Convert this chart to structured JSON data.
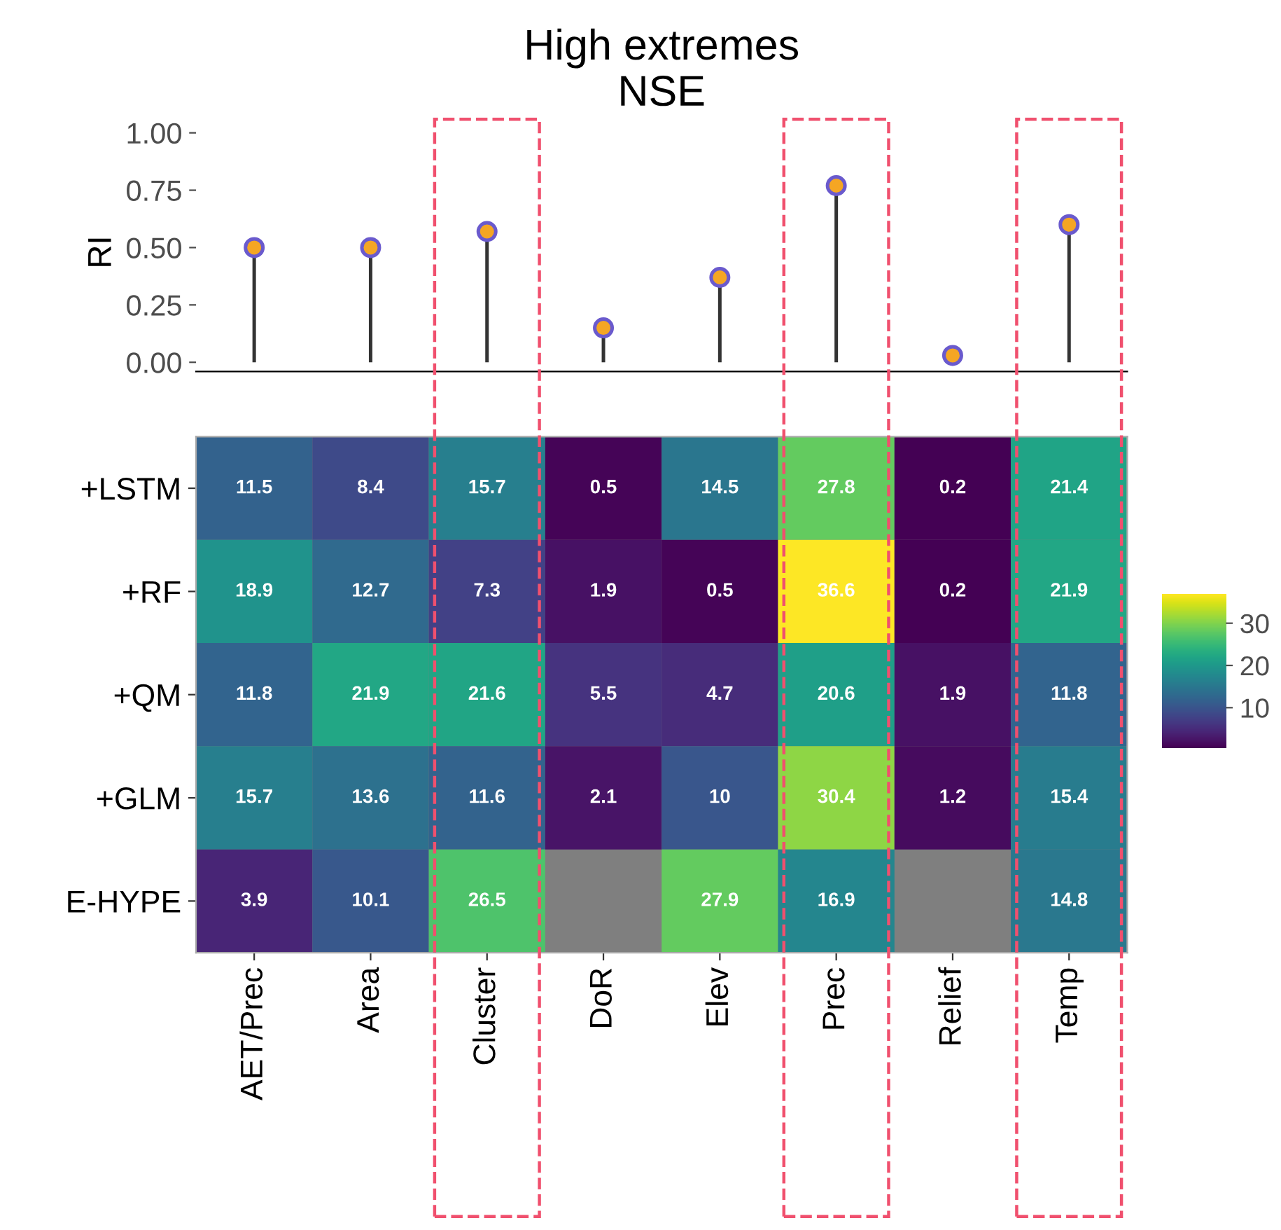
{
  "chart_data": [
    {
      "type": "lollipop",
      "title": "High extremes\nNSE",
      "ylabel": "RI",
      "categories": [
        null,
        null,
        null,
        null,
        null,
        null,
        null,
        null
      ],
      "series": [
        {
          "color": "#f5a623",
          "values": [
            0.5,
            0.5,
            0.57,
            0.15,
            0.37,
            0.77,
            0.03,
            0.6
          ]
        }
      ],
      "ylim": [
        -0.04,
        1.0
      ],
      "yticks": [
        {
          "value": 0,
          "label": "0.00"
        },
        {
          "value": 0.25,
          "label": "0.25"
        },
        {
          "value": 0.5,
          "label": "0.50"
        },
        {
          "value": 0.75,
          "label": "0.75"
        },
        {
          "value": 1,
          "label": "1.00"
        }
      ],
      "tick_labels": "y",
      "marker": "circle",
      "legend": false
    },
    {
      "type": "heatmap",
      "categories": [
        "AET/Prec",
        "Area",
        "Cluster",
        "DoR",
        "Elev",
        "Prec",
        "Relief",
        "Temp"
      ],
      "y_categories": [
        "+LSTM",
        "+RF",
        "+QM",
        "+GLM",
        "E-HYPE"
      ],
      "cells": [
        [
          11.5,
          8.4,
          15.7,
          0.5,
          14.5,
          27.8,
          0.2,
          21.4
        ],
        [
          18.9,
          12.7,
          7.3,
          1.9,
          0.5,
          36.6,
          0.2,
          21.9
        ],
        [
          11.8,
          21.9,
          21.6,
          5.5,
          4.7,
          20.6,
          1.9,
          11.8
        ],
        [
          15.7,
          13.6,
          11.6,
          2.1,
          10,
          30.4,
          1.2,
          15.4
        ],
        [
          3.9,
          10.1,
          26.5,
          null,
          27.9,
          16.9,
          null,
          14.8
        ]
      ],
      "clim": [
        0.2,
        36.6
      ],
      "cticks": [
        10,
        20,
        30
      ],
      "data_labels": true
    }
  ]
}
